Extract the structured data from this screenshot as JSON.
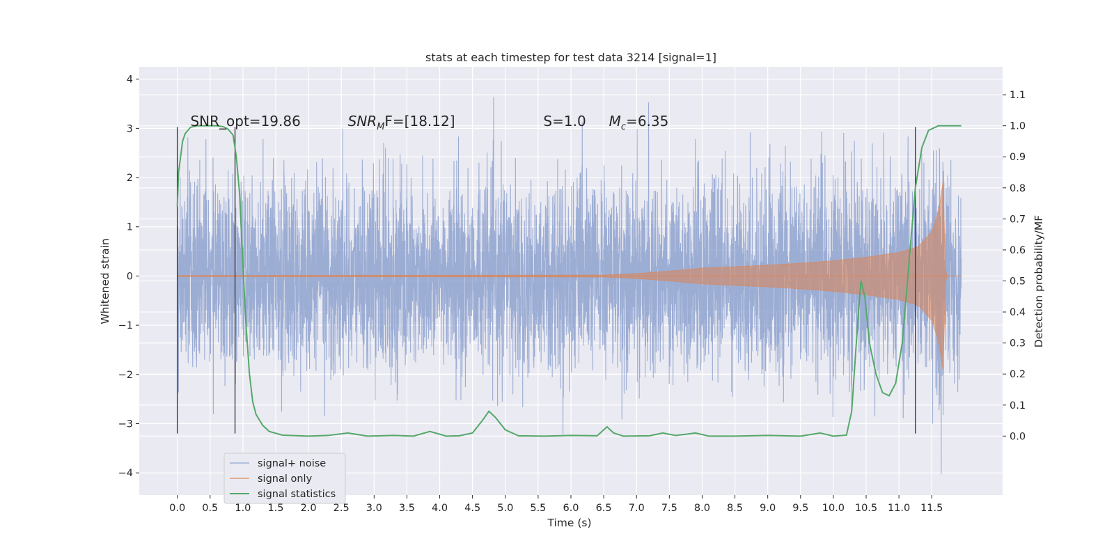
{
  "chart_data": {
    "type": "line",
    "title": "stats at each timestep for test data 3214 [signal=1]",
    "xlabel": "Time (s)",
    "ylabel_left": "Whitened strain",
    "ylabel_right": "Detection probability/MF",
    "xlim": [
      -0.58,
      12.58
    ],
    "ylim_left": [
      -4.45,
      4.25
    ],
    "ylim_right": [
      -0.19,
      1.19
    ],
    "x_ticks": [
      0.0,
      0.5,
      1.0,
      1.5,
      2.0,
      2.5,
      3.0,
      3.5,
      4.0,
      4.5,
      5.0,
      5.5,
      6.0,
      6.5,
      7.0,
      7.5,
      8.0,
      8.5,
      9.0,
      9.5,
      10.0,
      10.5,
      11.0,
      11.5
    ],
    "x_tick_labels": [
      "0.0",
      "0.5",
      "1.0",
      "1.5",
      "2.0",
      "2.5",
      "3.0",
      "3.5",
      "4.0",
      "4.5",
      "5.0",
      "5.5",
      "6.0",
      "6.5",
      "7.0",
      "7.5",
      "8.0",
      "8.5",
      "9.0",
      "9.5",
      "10.0",
      "10.5",
      "11.0",
      "11.5"
    ],
    "y_left_ticks": [
      -4,
      -3,
      -2,
      -1,
      0,
      1,
      2,
      3,
      4
    ],
    "y_left_tick_labels": [
      "−4",
      "−3",
      "−2",
      "−1",
      "0",
      "1",
      "2",
      "3",
      "4"
    ],
    "y_right_ticks": [
      0.0,
      0.1,
      0.2,
      0.3,
      0.4,
      0.5,
      0.6,
      0.7,
      0.8,
      0.9,
      1.0,
      1.1
    ],
    "y_right_tick_labels": [
      "0.0",
      "0.1",
      "0.2",
      "0.3",
      "0.4",
      "0.5",
      "0.6",
      "0.7",
      "0.8",
      "0.9",
      "1.0",
      "1.1"
    ],
    "grid": true,
    "legend_position": "lower-left",
    "annotations": [
      {
        "text": "SNR_opt=19.86",
        "x": 0.2,
        "y": 3.15
      },
      {
        "main": "SNR",
        "sub": "M",
        "after": "F=[18.12]",
        "x": 2.6,
        "y": 3.15
      },
      {
        "text": "S=1.0",
        "x": 5.58,
        "y": 3.15
      },
      {
        "main": "M",
        "sub": "c",
        "after": "=6.35",
        "x": 6.58,
        "y": 3.15
      }
    ],
    "vertical_markers": [
      {
        "x": 0.0,
        "y_range": [
          -3.2,
          3.03
        ]
      },
      {
        "x": 0.88,
        "y_range": [
          -3.2,
          3.03
        ]
      },
      {
        "x": 11.25,
        "y_range": [
          -3.2,
          3.03
        ]
      }
    ],
    "series": [
      {
        "name": "signal+ noise",
        "axis": "left",
        "color": "#8ea2cf",
        "x_range": [
          0.0,
          11.95
        ],
        "envelope_sigma": 1.0,
        "typical_range": [
          -2.0,
          2.0
        ],
        "extremes": {
          "max": 3.88,
          "min": -4.05
        }
      },
      {
        "name": "signal only",
        "axis": "left",
        "color": "#dd8452",
        "x_range": [
          0.0,
          11.95
        ],
        "envelope_points": [
          [
            0.0,
            0.01
          ],
          [
            6.5,
            0.02
          ],
          [
            7.0,
            0.05
          ],
          [
            7.5,
            0.1
          ],
          [
            8.0,
            0.16
          ],
          [
            8.5,
            0.19
          ],
          [
            9.0,
            0.22
          ],
          [
            9.5,
            0.26
          ],
          [
            10.0,
            0.31
          ],
          [
            10.5,
            0.38
          ],
          [
            11.0,
            0.48
          ],
          [
            11.3,
            0.6
          ],
          [
            11.5,
            0.9
          ],
          [
            11.6,
            1.3
          ],
          [
            11.65,
            1.7
          ],
          [
            11.68,
            2.0
          ],
          [
            11.7,
            0.3
          ],
          [
            11.72,
            0.0
          ],
          [
            11.95,
            0.0
          ]
        ]
      },
      {
        "name": "signal statistics",
        "axis": "right",
        "color": "#55a868",
        "points": [
          [
            0.0,
            0.74
          ],
          [
            0.02,
            0.85
          ],
          [
            0.05,
            0.9
          ],
          [
            0.08,
            0.95
          ],
          [
            0.12,
            0.975
          ],
          [
            0.2,
            0.995
          ],
          [
            0.3,
            1.0
          ],
          [
            0.6,
            1.0
          ],
          [
            0.7,
            0.997
          ],
          [
            0.77,
            0.99
          ],
          [
            0.85,
            0.97
          ],
          [
            0.9,
            0.9
          ],
          [
            0.95,
            0.78
          ],
          [
            1.0,
            0.55
          ],
          [
            1.05,
            0.35
          ],
          [
            1.1,
            0.2
          ],
          [
            1.15,
            0.11
          ],
          [
            1.2,
            0.07
          ],
          [
            1.3,
            0.035
          ],
          [
            1.4,
            0.015
          ],
          [
            1.6,
            0.003
          ],
          [
            2.0,
            0.0
          ],
          [
            2.3,
            0.002
          ],
          [
            2.6,
            0.01
          ],
          [
            2.9,
            0.0
          ],
          [
            3.3,
            0.002
          ],
          [
            3.6,
            0.0
          ],
          [
            3.85,
            0.015
          ],
          [
            4.1,
            0.0
          ],
          [
            4.3,
            0.001
          ],
          [
            4.5,
            0.01
          ],
          [
            4.65,
            0.05
          ],
          [
            4.75,
            0.08
          ],
          [
            4.85,
            0.06
          ],
          [
            5.0,
            0.02
          ],
          [
            5.2,
            0.001
          ],
          [
            5.6,
            0.0
          ],
          [
            6.0,
            0.002
          ],
          [
            6.4,
            0.001
          ],
          [
            6.55,
            0.03
          ],
          [
            6.65,
            0.01
          ],
          [
            6.8,
            0.0
          ],
          [
            7.2,
            0.001
          ],
          [
            7.4,
            0.01
          ],
          [
            7.6,
            0.002
          ],
          [
            7.9,
            0.01
          ],
          [
            8.1,
            0.0
          ],
          [
            8.5,
            0.0
          ],
          [
            9.0,
            0.002
          ],
          [
            9.5,
            0.0
          ],
          [
            9.8,
            0.01
          ],
          [
            10.0,
            0.0
          ],
          [
            10.2,
            0.003
          ],
          [
            10.28,
            0.08
          ],
          [
            10.35,
            0.3
          ],
          [
            10.42,
            0.5
          ],
          [
            10.48,
            0.45
          ],
          [
            10.55,
            0.3
          ],
          [
            10.65,
            0.2
          ],
          [
            10.75,
            0.14
          ],
          [
            10.85,
            0.13
          ],
          [
            10.95,
            0.17
          ],
          [
            11.05,
            0.3
          ],
          [
            11.15,
            0.55
          ],
          [
            11.25,
            0.8
          ],
          [
            11.35,
            0.93
          ],
          [
            11.45,
            0.985
          ],
          [
            11.6,
            1.0
          ],
          [
            11.95,
            1.0
          ]
        ]
      }
    ]
  }
}
